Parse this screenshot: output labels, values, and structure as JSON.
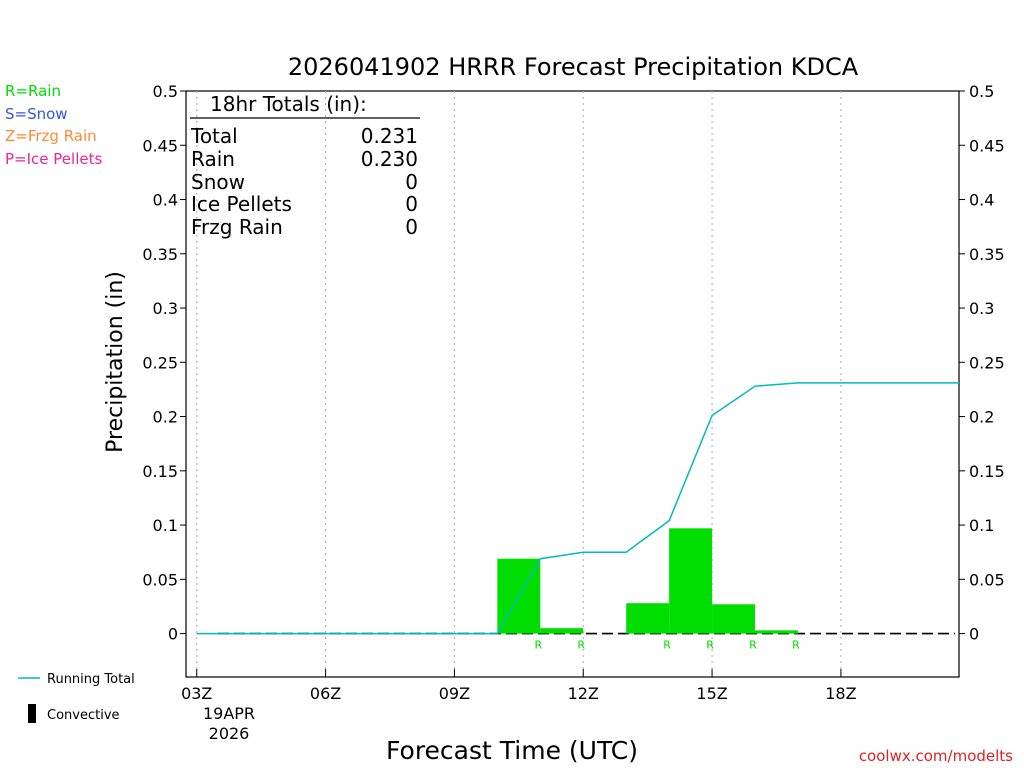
{
  "colors": {
    "rain": "#00dd00",
    "snow": "#3355ee",
    "frzg_rain": "#ff8833",
    "ice_pellets": "#ee2299",
    "running_total": "#00bbbb",
    "credit": "#dd2222"
  },
  "type_legend": [
    {
      "label": "R=Rain",
      "color": "#00dd00"
    },
    {
      "label": "S=Snow",
      "color": "#3355ee"
    },
    {
      "label": "Z=Frzg Rain",
      "color": "#ff8833"
    },
    {
      "label": "P=Ice Pellets",
      "color": "#ee2299"
    }
  ],
  "bottom_legend": {
    "running_total_label": "Running Total",
    "convective_label": "Convective"
  },
  "totals": {
    "heading": "18hr Totals (in):",
    "rows": [
      {
        "label": "Total",
        "value": "0.231"
      },
      {
        "label": "Rain",
        "value": "0.230"
      },
      {
        "label": "Snow",
        "value": "0"
      },
      {
        "label": "Ice Pellets",
        "value": "0"
      },
      {
        "label": "Frzg Rain",
        "value": "0"
      }
    ]
  },
  "date_label": {
    "line1": "19APR",
    "line2": "2026"
  },
  "credit": "coolwx.com/modelts",
  "chart_data": {
    "type": "bar",
    "title": "2026041902 HRRR Forecast Precipitation KDCA",
    "xlabel": "Forecast Time (UTC)",
    "ylabel": "Precipitation (in)",
    "ylim": [
      -0.04,
      0.5
    ],
    "yticks": [
      0,
      0.05,
      0.1,
      0.15,
      0.2,
      0.25,
      0.3,
      0.35,
      0.4,
      0.45,
      0.5
    ],
    "ytick_labels": [
      "0",
      "0.05",
      "0.1",
      "0.15",
      "0.2",
      "0.25",
      "0.3",
      "0.35",
      "0.4",
      "0.45",
      "0.5"
    ],
    "xlim": [
      2.75,
      20.75
    ],
    "xticks": [
      3,
      6,
      9,
      12,
      15,
      18
    ],
    "xtick_labels": [
      "03Z",
      "06Z",
      "09Z",
      "12Z",
      "15Z",
      "18Z"
    ],
    "grid": "vertical dotted at x ticks",
    "bars": [
      {
        "hour": 11,
        "value": 0.069,
        "ptype": "R"
      },
      {
        "hour": 12,
        "value": 0.005,
        "ptype": "R"
      },
      {
        "hour": 14,
        "value": 0.028,
        "ptype": "R"
      },
      {
        "hour": 15,
        "value": 0.097,
        "ptype": "R"
      },
      {
        "hour": 16,
        "value": 0.027,
        "ptype": "R"
      },
      {
        "hour": 17,
        "value": 0.003,
        "ptype": "R"
      }
    ],
    "running_total": {
      "name": "Running Total",
      "x": [
        3,
        4,
        5,
        6,
        7,
        8,
        9,
        10,
        11,
        12,
        13,
        14,
        15,
        16,
        17,
        18,
        19,
        20,
        20.75
      ],
      "y": [
        0,
        0,
        0,
        0,
        0,
        0,
        0,
        0,
        0.069,
        0.075,
        0.075,
        0.104,
        0.201,
        0.228,
        0.231,
        0.231,
        0.231,
        0.231,
        0.231
      ]
    }
  }
}
